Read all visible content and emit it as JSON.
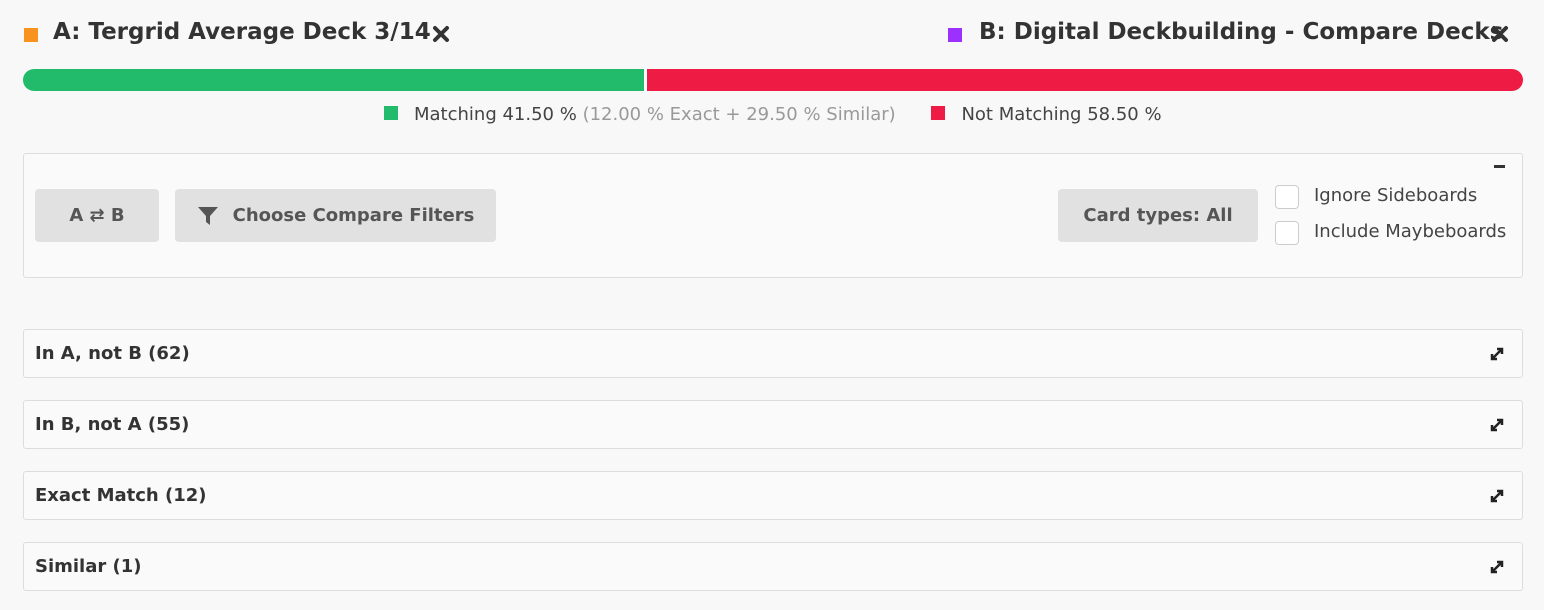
{
  "header": {
    "deck_a": "A: Tergrid Average Deck 3/14",
    "deck_b": "B: Digital Deckbuilding - Compare Decks"
  },
  "match_bar": {
    "matching": {
      "label": "Matching 41.50 %",
      "detail": "(12.00 % Exact + 29.50 % Similar)",
      "value": 41.5,
      "color": "#22bb6b"
    },
    "not_matching": {
      "label": "Not Matching 58.50 %",
      "value": 58.5,
      "color": "#ee1c45"
    }
  },
  "filters": {
    "swap_button": "A ⇄ B",
    "filter_button": "Choose Compare Filters",
    "card_types_button": "Card types: All",
    "checkboxes": [
      "Ignore Sideboards",
      "Include Maybeboards"
    ]
  },
  "sections": [
    "In A, not B (62)",
    "In B, not A (55)",
    "Exact Match (12)",
    "Similar (1)"
  ]
}
